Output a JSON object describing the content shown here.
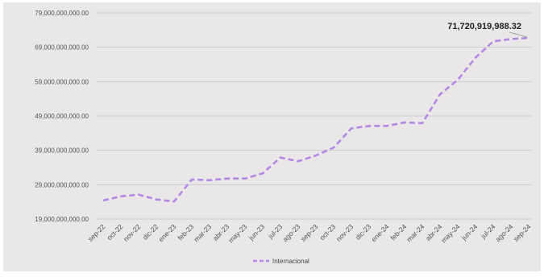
{
  "chart_data": {
    "type": "line",
    "x": [
      "sep-22",
      "oct-22",
      "nov-22",
      "dic-22",
      "ene-23",
      "feb-23",
      "mar-23",
      "abr-23",
      "may-23",
      "jun-23",
      "jul-23",
      "ago-23",
      "sep-23",
      "oct-23",
      "nov-23",
      "dic-23",
      "ene-24",
      "feb-24",
      "mar-24",
      "abr-24",
      "may-24",
      "jun-24",
      "jul-24",
      "ago-24",
      "sep-24"
    ],
    "series": [
      {
        "name": "Internacional",
        "color": "#b388e3",
        "dash": "dashed",
        "values": [
          24400000000,
          25600000000,
          26100000000,
          24700000000,
          24100000000,
          30500000000,
          30300000000,
          30800000000,
          30800000000,
          32300000000,
          36900000000,
          35800000000,
          37500000000,
          39800000000,
          45400000000,
          46100000000,
          46100000000,
          47100000000,
          46900000000,
          55300000000,
          59500000000,
          66000000000,
          70700000000,
          71400000000,
          71720919988.32
        ]
      }
    ],
    "yticks": [
      "79,000,000,000.00",
      "69,000,000,000.00",
      "59,000,000,000.00",
      "49,000,000,000.00",
      "39,000,000,000.00",
      "29,000,000,000.00",
      "19,000,000,000.00"
    ],
    "ylim": [
      19000000000,
      79000000000
    ],
    "title": "",
    "xlabel": "",
    "ylabel": "",
    "grid": true,
    "legend": "bottom",
    "annotation": {
      "text": "71,720,919,988.32",
      "index": 24
    },
    "background": "#e9e7e8",
    "grid_color": "#cccccc"
  }
}
